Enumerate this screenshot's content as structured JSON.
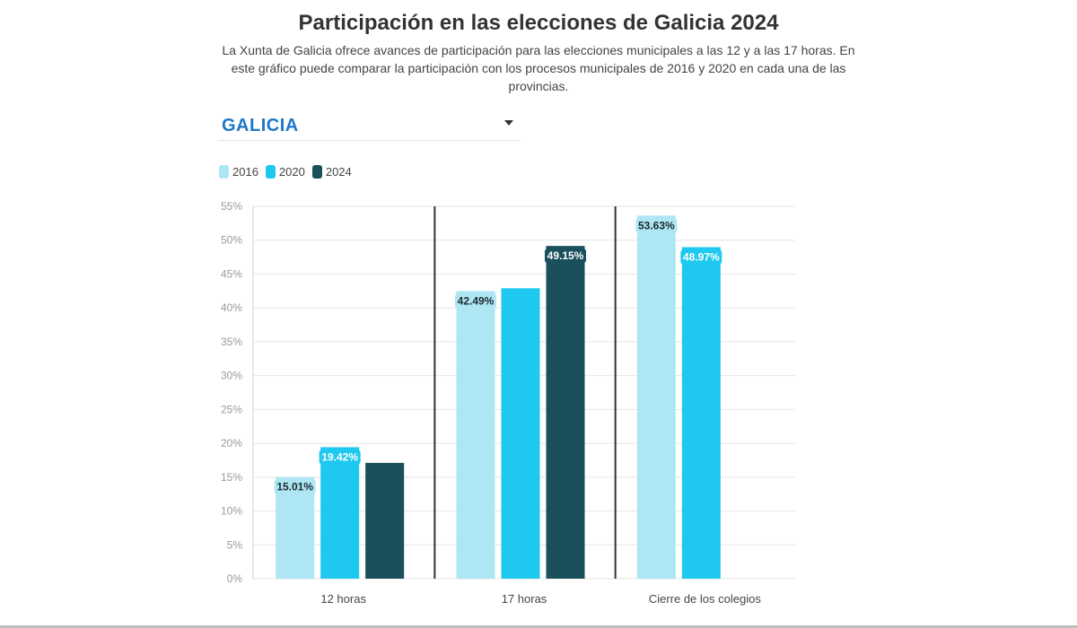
{
  "header": {
    "title": "Participación en las elecciones de Galicia 2024",
    "subtitle": "La Xunta de Galicia ofrece avances de participación para las elecciones municipales a las 12 y a las 17 horas. En este gráfico puede comparar la participación con los procesos municipales de 2016 y 2020 en cada una de las provincias."
  },
  "selector": {
    "value": "GALICIA"
  },
  "colors": {
    "s2016": "#aee6f3",
    "s2020": "#1ec8ee",
    "s2024": "#1a4f5c",
    "grid": "#e6e6e6",
    "axis_text": "#9a9a9a",
    "divider": "#333333"
  },
  "chart_data": {
    "type": "bar",
    "title": "Participación en las elecciones de Galicia 2024",
    "xlabel": "",
    "ylabel": "",
    "ylim": [
      0,
      55
    ],
    "yticks": [
      "0%",
      "5%",
      "10%",
      "15%",
      "20%",
      "25%",
      "30%",
      "35%",
      "40%",
      "45%",
      "50%",
      "55%"
    ],
    "categories": [
      "12 horas",
      "17 horas",
      "Cierre de los colegios"
    ],
    "series": [
      {
        "name": "2016",
        "values": [
          15.01,
          42.49,
          53.63
        ],
        "labels": [
          "15.01%",
          "42.49%",
          "53.63%"
        ]
      },
      {
        "name": "2020",
        "values": [
          19.42,
          42.9,
          48.97
        ],
        "labels": [
          "19.42%",
          null,
          "48.97%"
        ]
      },
      {
        "name": "2024",
        "values": [
          17.1,
          49.15,
          null
        ],
        "labels": [
          null,
          "49.15%",
          null
        ]
      }
    ],
    "legend": [
      "2016",
      "2020",
      "2024"
    ]
  }
}
